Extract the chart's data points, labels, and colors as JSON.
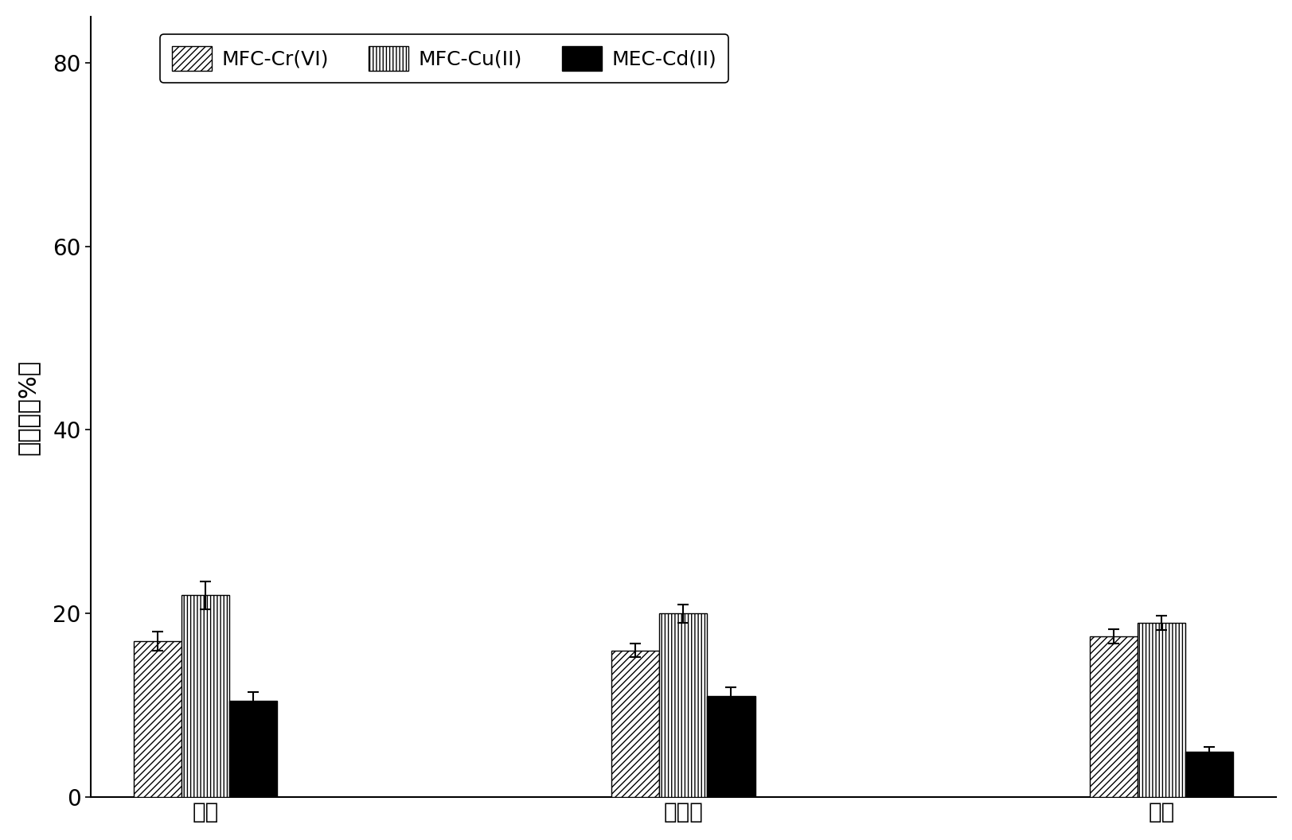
{
  "categories": [
    "钔片",
    "不锈钐",
    "碳棒"
  ],
  "series": [
    {
      "label": "MFC-Cr(VI)",
      "values": [
        17.0,
        16.0,
        17.5
      ],
      "errors": [
        1.0,
        0.7,
        0.8
      ],
      "hatch": "////",
      "facecolor": "white",
      "edgecolor": "black"
    },
    {
      "label": "MFC-Cu(II)",
      "values": [
        22.0,
        20.0,
        19.0
      ],
      "errors": [
        1.5,
        1.0,
        0.8
      ],
      "hatch": "||||",
      "facecolor": "white",
      "edgecolor": "black"
    },
    {
      "label": "MEC-Cd(II)",
      "values": [
        10.5,
        11.0,
        5.0
      ],
      "errors": [
        1.0,
        1.0,
        0.5
      ],
      "hatch": "----",
      "facecolor": "black",
      "edgecolor": "black"
    }
  ],
  "ylabel": "去除率（%）",
  "ylim": [
    0,
    85
  ],
  "yticks": [
    0,
    20,
    40,
    60,
    80
  ],
  "bar_width": 0.25,
  "background_color": "white",
  "fontsize_label": 22,
  "fontsize_tick": 20,
  "fontsize_legend": 18
}
